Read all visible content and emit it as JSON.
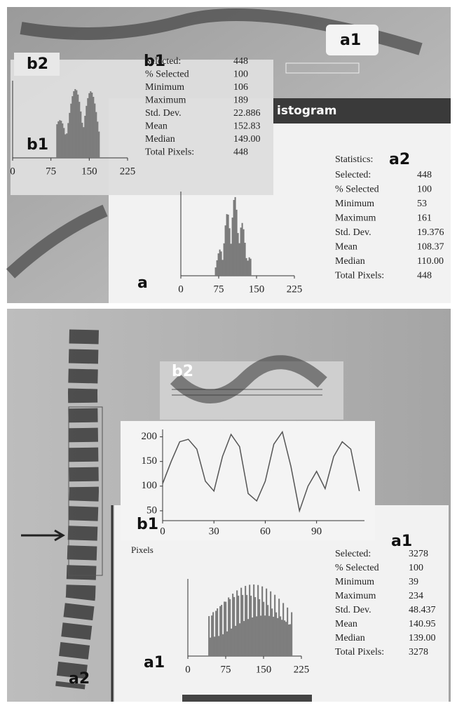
{
  "top_panel": {
    "label_a1": "a1",
    "label_b2": "b2",
    "label_b1_stats": "b1",
    "label_b1_hist": "b1",
    "label_a2": "a2",
    "label_a": "a",
    "window_title": "istogram",
    "stats_b1": {
      "rows": [
        [
          "Selected:",
          "448"
        ],
        [
          "% Selected",
          "100"
        ],
        [
          "Minimum",
          "106"
        ],
        [
          "Maximum",
          "189"
        ],
        [
          "Std. Dev.",
          "22.886"
        ],
        [
          "Mean",
          "152.83"
        ],
        [
          "Median",
          "149.00"
        ],
        [
          "Total Pixels:",
          "448"
        ]
      ]
    },
    "hist_b1": {
      "xlim": [
        0,
        225
      ],
      "xticks": [
        0,
        75,
        150,
        225
      ]
    },
    "stats_a2": {
      "header": "Statistics:",
      "rows": [
        [
          "Selected:",
          "448"
        ],
        [
          "% Selected",
          "100"
        ],
        [
          "Minimum",
          "53"
        ],
        [
          "Maximum",
          "161"
        ],
        [
          "Std. Dev.",
          "19.376"
        ],
        [
          "Mean",
          "108.37"
        ],
        [
          "Median",
          "110.00"
        ],
        [
          "Total Pixels:",
          "448"
        ]
      ]
    },
    "hist_a": {
      "xlim": [
        0,
        225
      ],
      "xticks": [
        0,
        75,
        150,
        225
      ]
    }
  },
  "bottom_panel": {
    "label_b2": "b2",
    "label_b1": "b1",
    "label_a1_stats": "a1",
    "label_a1_hist": "a1",
    "label_a2": "a2",
    "pixels_label": "Pixels",
    "profile": {
      "type": "line",
      "x": [
        0,
        5,
        10,
        15,
        20,
        25,
        30,
        35,
        40,
        45,
        50,
        55,
        60,
        65,
        70,
        75,
        80,
        85,
        90,
        95,
        100,
        105,
        110,
        115
      ],
      "values": [
        105,
        150,
        190,
        195,
        175,
        110,
        90,
        160,
        205,
        180,
        85,
        70,
        110,
        185,
        210,
        140,
        50,
        100,
        130,
        95,
        160,
        190,
        175,
        90
      ],
      "xlim": [
        0,
        118
      ],
      "ylim": [
        30,
        215
      ],
      "xticks": [
        0,
        30,
        60,
        90
      ],
      "yticks": [
        50,
        100,
        150,
        200
      ],
      "color": "#555555"
    },
    "stats_a1": {
      "rows": [
        [
          "Selected:",
          "3278"
        ],
        [
          "% Selected",
          "100"
        ],
        [
          "Minimum",
          "39"
        ],
        [
          "Maximum",
          "234"
        ],
        [
          "Std. Dev.",
          "48.437"
        ],
        [
          "Mean",
          "140.95"
        ],
        [
          "Median",
          "139.00"
        ],
        [
          "Total Pixels:",
          "3278"
        ]
      ]
    },
    "hist_a1": {
      "xlim": [
        0,
        225
      ],
      "xticks": [
        0,
        75,
        150,
        225
      ]
    }
  }
}
